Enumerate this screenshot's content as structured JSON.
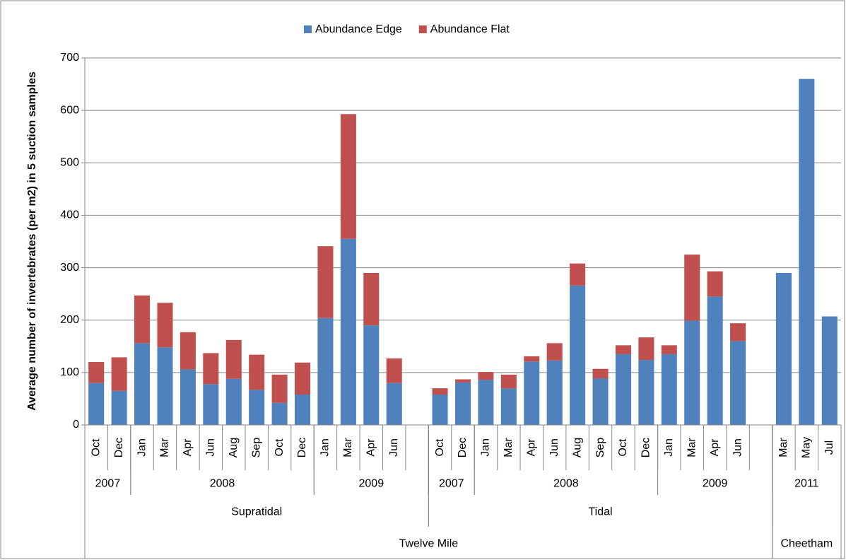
{
  "chart_data": {
    "type": "bar",
    "stacked": true,
    "y_label": "Average number of invertebrates (per m2) in 5 suction samples",
    "categories": [
      "Oct",
      "Dec",
      "Jan",
      "Mar",
      "Apr",
      "Jun",
      "Aug",
      "Sep",
      "Oct",
      "Dec",
      "Jan",
      "Mar",
      "Apr",
      "Jun",
      null,
      "Oct",
      "Dec",
      "Jan",
      "Mar",
      "Apr",
      "Jun",
      "Aug",
      "Sep",
      "Oct",
      "Dec",
      "Jan",
      "Mar",
      "Apr",
      "Jun",
      null,
      "Mar",
      "May",
      "Jul"
    ],
    "year_groups": [
      {
        "label": "2007",
        "span": 2
      },
      {
        "label": "2008",
        "span": 8
      },
      {
        "label": "2009",
        "span": 5
      },
      {
        "label": "2007",
        "span": 2
      },
      {
        "label": "2008",
        "span": 8
      },
      {
        "label": "2009",
        "span": 5
      },
      {
        "label": "2011",
        "span": 3
      }
    ],
    "site_groups": [
      {
        "label": "Supratidal",
        "span": 15
      },
      {
        "label": "Tidal",
        "span": 15
      }
    ],
    "location_groups": [
      {
        "label": "Twelve Mile",
        "span": 30
      },
      {
        "label": "Cheetham",
        "span": 3
      }
    ],
    "series": [
      {
        "name": "Abundance Edge",
        "color": "#4f81bd",
        "values": [
          80,
          65,
          156,
          148,
          106,
          78,
          88,
          67,
          42,
          58,
          204,
          355,
          190,
          80,
          null,
          58,
          81,
          86,
          70,
          121,
          123,
          266,
          89,
          135,
          124,
          135,
          199,
          245,
          160,
          null,
          290,
          660,
          207
        ]
      },
      {
        "name": "Abundance Flat",
        "color": "#c0504d",
        "values": [
          40,
          64,
          91,
          85,
          71,
          59,
          74,
          67,
          54,
          61,
          137,
          238,
          100,
          47,
          null,
          12,
          6,
          15,
          26,
          10,
          33,
          42,
          18,
          17,
          43,
          17,
          126,
          48,
          34,
          null,
          0,
          0,
          0
        ]
      }
    ],
    "ylim": [
      0,
      700
    ],
    "yticks": [
      0,
      100,
      200,
      300,
      400,
      500,
      600,
      700
    ],
    "grid": true,
    "legend": "top"
  }
}
